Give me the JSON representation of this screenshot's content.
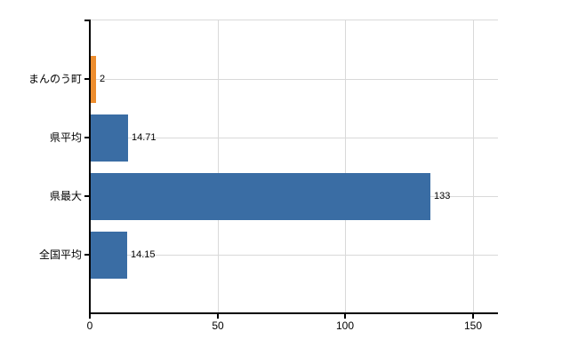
{
  "chart": {
    "background_color": "#ffffff",
    "axis_color": "#000000",
    "grid_color": "#d9d9d9",
    "text_color": "#000000"
  },
  "chart_data": {
    "type": "bar",
    "orientation": "horizontal",
    "title": "",
    "xlabel": "",
    "ylabel": "",
    "legend": null,
    "grid": "vertical value gridlines and horizontal category lines, light gray",
    "categories": [
      "まんのう町",
      "県平均",
      "県最大",
      "全国平均"
    ],
    "values": [
      2,
      14.71,
      133,
      14.15
    ],
    "value_labels": [
      "2",
      "14.71",
      "133",
      "14.15"
    ],
    "bar_colors": [
      "#ed8d2e",
      "#3a6da4",
      "#3a6da4",
      "#3a6da4"
    ],
    "x_ticks": [
      0,
      50,
      100,
      150
    ],
    "x_tick_labels": [
      "0",
      "50",
      "100",
      "150"
    ],
    "xlim": [
      0,
      160
    ]
  }
}
